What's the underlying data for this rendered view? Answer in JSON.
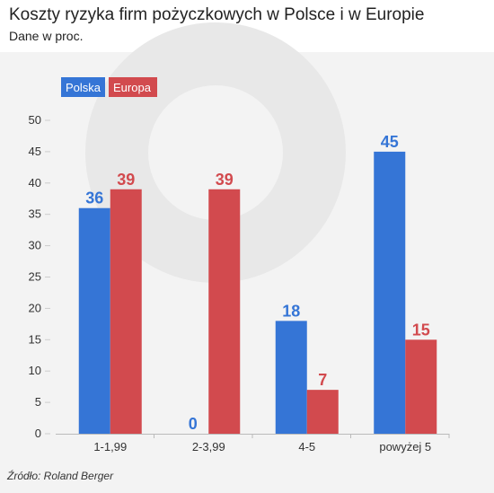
{
  "title": "Koszty ryzyka firm pożyczkowych w Polsce i w Europie",
  "subtitle": "Dane w proc.",
  "source": "Źródło: Roland Berger",
  "colors": {
    "polska": "#3575d6",
    "europa": "#d24a4e",
    "axis_text": "#333333",
    "grid": "#cccccc"
  },
  "chart_data": {
    "type": "bar",
    "categories": [
      "1-1,99",
      "2-3,99",
      "4-5",
      "powyżej 5"
    ],
    "series": [
      {
        "name": "Polska",
        "values": [
          36,
          0,
          18,
          45
        ],
        "color": "#3575d6"
      },
      {
        "name": "Europa",
        "values": [
          39,
          39,
          7,
          15
        ],
        "color": "#d24a4e"
      }
    ],
    "ylim": [
      0,
      50
    ],
    "yticks": [
      "0",
      "5",
      "10",
      "15",
      "20",
      "25",
      "30",
      "35",
      "40",
      "45",
      "50"
    ],
    "legend": "top-left",
    "grid": false
  }
}
